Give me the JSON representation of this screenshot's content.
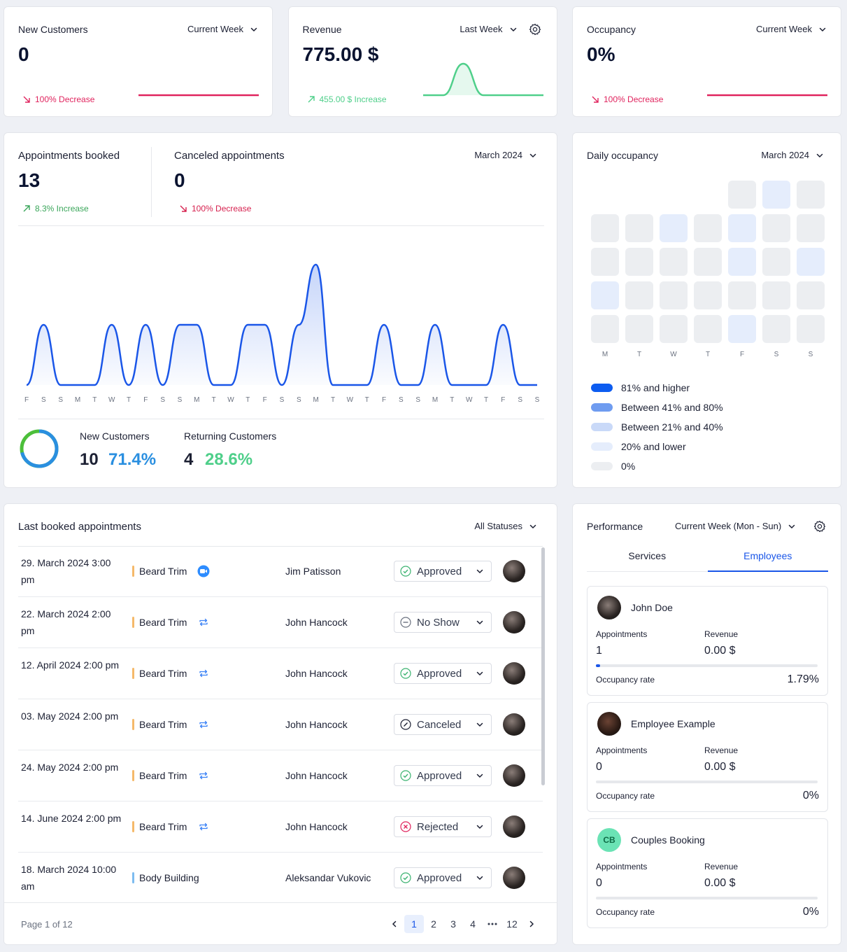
{
  "kpis": [
    {
      "title": "New Customers",
      "period": "Current Week",
      "value": "0",
      "change": "100% Decrease",
      "trend": "down",
      "color": "#e0245e",
      "settings_icon": false,
      "sparkline": [
        0,
        0,
        0,
        0,
        0,
        0,
        0
      ]
    },
    {
      "title": "Revenue",
      "period": "Last Week",
      "value": "775.00 $",
      "change": "455.00 $ Increase",
      "trend": "up",
      "color": "#4fcf8a",
      "settings_icon": true,
      "sparkline": [
        0,
        0,
        775,
        0,
        0,
        0,
        0
      ]
    },
    {
      "title": "Occupancy",
      "period": "Current Week",
      "value": "0%",
      "change": "100% Decrease",
      "trend": "down",
      "color": "#e0245e",
      "settings_icon": false,
      "sparkline": [
        0,
        0,
        0,
        0,
        0,
        0,
        0
      ]
    }
  ],
  "appointments": {
    "booked_label": "Appointments booked",
    "booked": "13",
    "booked_change": "8.3% Increase",
    "canceled_label": "Canceled appointments",
    "canceled": "0",
    "canceled_change": "100% Decrease",
    "period": "March 2024",
    "chart": {
      "type": "area",
      "color": "#1a56e8",
      "categories": [
        "F",
        "S",
        "S",
        "M",
        "T",
        "W",
        "T",
        "F",
        "S",
        "S",
        "M",
        "T",
        "W",
        "T",
        "F",
        "S",
        "S",
        "M",
        "T",
        "W",
        "T",
        "F",
        "S",
        "S",
        "M",
        "T",
        "W",
        "T",
        "F",
        "S",
        "S"
      ],
      "values": [
        0,
        1,
        0,
        0,
        0,
        1,
        0,
        1,
        0,
        1,
        1,
        0,
        0,
        1,
        1,
        0,
        1,
        2,
        0,
        0,
        0,
        1,
        0,
        0,
        1,
        0,
        0,
        0,
        1,
        0,
        0
      ]
    },
    "new_label": "New Customers",
    "new_count": 10,
    "new_share": "71.4%",
    "new_color": "#2a8fe0",
    "returning_label": "Returning Customers",
    "returning_count": 4,
    "returning_share": "28.6%",
    "returning_color": "#4cbf3a"
  },
  "occupancy": {
    "title": "Daily occupancy",
    "period": "March 2024",
    "weekdays": [
      "M",
      "T",
      "W",
      "T",
      "F",
      "S",
      "S"
    ],
    "days": [
      null,
      null,
      null,
      null,
      0,
      10,
      0,
      0,
      0,
      10,
      0,
      10,
      0,
      0,
      0,
      0,
      0,
      0,
      10,
      0,
      10,
      10,
      0,
      0,
      0,
      0,
      0,
      0,
      0,
      0,
      0,
      0,
      10,
      0,
      0
    ],
    "levels": [
      {
        "label": "81% and higher",
        "min": 81,
        "color": "#0d5cf0"
      },
      {
        "label": "Between 41% and 80%",
        "min": 41,
        "color": "#6f9cf0"
      },
      {
        "label": "Between 21% and 40%",
        "min": 21,
        "color": "#c9d9f8"
      },
      {
        "label": "20% and lower",
        "min": 0,
        "color": "#e5edfc"
      },
      {
        "label": "0%",
        "color": "#eceef1"
      }
    ]
  },
  "table": {
    "title": "Last booked appointments",
    "filter": "All Statuses",
    "rows": [
      {
        "date": "29. March 2024 3:00 pm",
        "service": "Beard Trim",
        "service_color": "#f5b96a",
        "icon": "video",
        "customer": "Jim Patisson",
        "status": "Approved",
        "status_icon": "check"
      },
      {
        "date": "22. March 2024 2:00 pm",
        "service": "Beard Trim",
        "service_color": "#f5b96a",
        "icon": "repeat",
        "customer": "John Hancock",
        "status": "No Show",
        "status_icon": "dash"
      },
      {
        "date": "12. April 2024 2:00 pm",
        "service": "Beard Trim",
        "service_color": "#f5b96a",
        "icon": "repeat",
        "customer": "John Hancock",
        "status": "Approved",
        "status_icon": "check"
      },
      {
        "date": "03. May 2024 2:00 pm",
        "service": "Beard Trim",
        "service_color": "#f5b96a",
        "icon": "repeat",
        "customer": "John Hancock",
        "status": "Canceled",
        "status_icon": "slash"
      },
      {
        "date": "24. May 2024 2:00 pm",
        "service": "Beard Trim",
        "service_color": "#f5b96a",
        "icon": "repeat",
        "customer": "John Hancock",
        "status": "Approved",
        "status_icon": "check"
      },
      {
        "date": "14. June 2024 2:00 pm",
        "service": "Beard Trim",
        "service_color": "#f5b96a",
        "icon": "repeat",
        "customer": "John Hancock",
        "status": "Rejected",
        "status_icon": "cross"
      },
      {
        "date": "18. March 2024 10:00 am",
        "service": "Body Building",
        "service_color": "#7dbcf0",
        "icon": null,
        "customer": "Aleksandar Vukovic",
        "status": "Approved",
        "status_icon": "check"
      }
    ],
    "page_info": "Page 1 of 12",
    "pages": [
      1,
      2,
      3,
      4,
      12
    ],
    "current_page": 1
  },
  "performance": {
    "title": "Performance",
    "period": "Current Week (Mon - Sun)",
    "tabs": [
      "Services",
      "Employees"
    ],
    "active_tab": 1,
    "labels": {
      "appointments": "Appointments",
      "revenue": "Revenue",
      "occupancy": "Occupancy rate"
    },
    "employees": [
      {
        "name": "John Doe",
        "appointments": "1",
        "revenue": "0.00 $",
        "occupancy": {
          "value": 1.79,
          "label": "1.79%"
        }
      },
      {
        "name": "Employee Example",
        "appointments": "0",
        "revenue": "0.00 $",
        "occupancy": {
          "value": 0,
          "label": "0%"
        }
      },
      {
        "name": "Couples Booking",
        "avatar_initials": "CB",
        "appointments": "0",
        "revenue": "0.00 $",
        "occupancy": {
          "value": 0,
          "label": "0%"
        }
      }
    ]
  }
}
